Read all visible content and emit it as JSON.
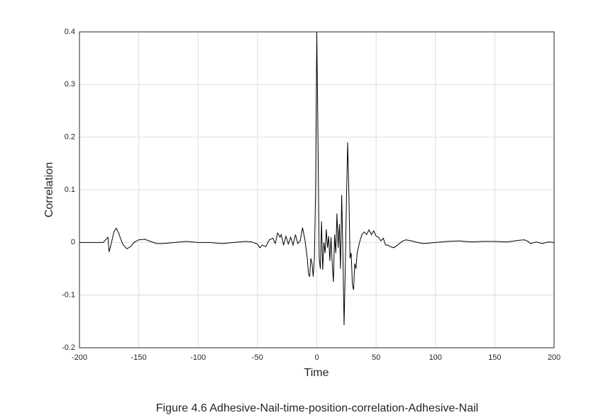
{
  "chart_data": {
    "type": "line",
    "caption": "Figure 4.6 Adhesive-Nail-time-position-correlation-Adhesive-Nail",
    "x_label": "Time",
    "y_label": "Correlation",
    "x": [
      -200,
      -190,
      -180,
      -176,
      -175,
      -173,
      -171,
      -169,
      -167,
      -165,
      -163,
      -160,
      -157,
      -154,
      -150,
      -145,
      -140,
      -135,
      -130,
      -120,
      -110,
      -100,
      -90,
      -80,
      -70,
      -60,
      -55,
      -50,
      -48,
      -46,
      -43,
      -40,
      -37,
      -35,
      -33,
      -31,
      -30,
      -28,
      -26,
      -24,
      -22,
      -20,
      -18,
      -16,
      -14,
      -12,
      -10,
      -8,
      -7,
      -6,
      -5,
      -4,
      -3,
      -2,
      -1,
      0,
      1,
      2,
      3,
      4,
      5,
      6,
      7,
      8,
      9,
      10,
      11,
      12,
      13,
      14,
      15,
      16,
      17,
      18,
      19,
      20,
      21,
      22,
      23,
      24,
      25,
      26,
      27,
      28,
      29,
      30,
      31,
      32,
      33,
      34,
      36,
      38,
      40,
      42,
      44,
      46,
      48,
      50,
      52,
      54,
      56,
      58,
      60,
      62,
      65,
      68,
      72,
      75,
      80,
      85,
      90,
      100,
      110,
      120,
      130,
      140,
      150,
      160,
      170,
      175,
      178,
      180,
      185,
      190,
      195,
      200
    ],
    "series": [
      {
        "color": "#000000",
        "values": [
          0,
          0,
          0,
          0.01,
          -0.018,
          0,
          0.02,
          0.027,
          0.018,
          0.005,
          -0.005,
          -0.012,
          -0.008,
          0,
          0.005,
          0.006,
          0.002,
          -0.002,
          -0.002,
          0,
          0.002,
          0,
          0,
          -0.002,
          0,
          0.002,
          0.001,
          -0.003,
          -0.01,
          -0.005,
          -0.008,
          0.005,
          0.008,
          -0.002,
          0.018,
          0.01,
          0.015,
          -0.005,
          0.012,
          -0.003,
          0.01,
          -0.005,
          0.015,
          -0.002,
          0.003,
          0.028,
          0.005,
          -0.03,
          -0.06,
          -0.065,
          -0.03,
          -0.04,
          -0.065,
          -0.03,
          0.1,
          0.4,
          0.2,
          -0.03,
          -0.05,
          0.04,
          -0.052,
          0,
          -0.02,
          0.025,
          -0.01,
          0.012,
          -0.035,
          0.01,
          -0.04,
          -0.075,
          0.015,
          -0.02,
          0.055,
          -0.01,
          0.035,
          -0.05,
          0.09,
          -0.02,
          -0.157,
          -0.05,
          0.08,
          0.19,
          0.1,
          -0.03,
          -0.02,
          -0.08,
          -0.09,
          -0.04,
          -0.05,
          -0.02,
          0,
          0.015,
          0.02,
          0.015,
          0.024,
          0.015,
          0.022,
          0.012,
          0.01,
          0.003,
          0.008,
          -0.005,
          -0.005,
          -0.008,
          -0.01,
          -0.005,
          0.002,
          0.005,
          0.003,
          0,
          -0.002,
          0,
          0.002,
          0.003,
          0.001,
          0.002,
          0.002,
          0.001,
          0.004,
          0.005,
          0.002,
          -0.002,
          0.001,
          -0.002,
          0.001,
          0
        ]
      }
    ],
    "xlim": [
      -200,
      200
    ],
    "xticks": [
      -200,
      -150,
      -100,
      -50,
      0,
      50,
      100,
      150,
      200
    ],
    "ylim": [
      -0.2,
      0.4
    ],
    "yticks": [
      -0.2,
      -0.1,
      0,
      0.1,
      0.2,
      0.3,
      0.4
    ],
    "grid": true
  }
}
